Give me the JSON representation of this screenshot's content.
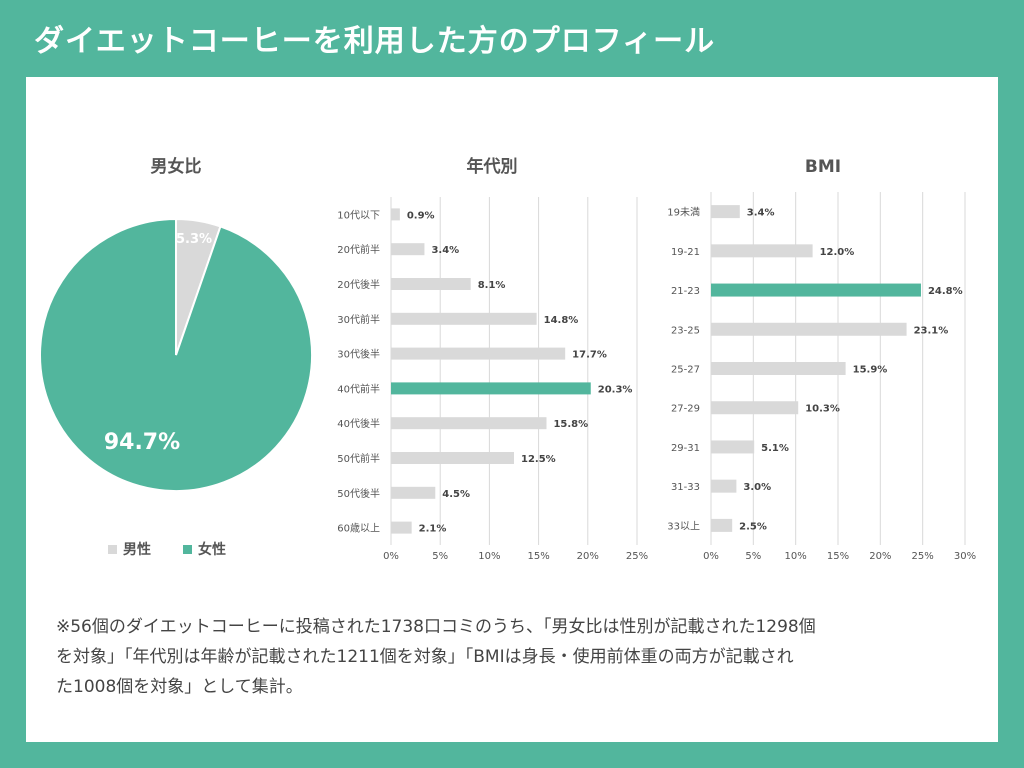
{
  "page_title": "ダイエットコーヒーを利用した方のプロフィール",
  "colors": {
    "background": "#52b69d",
    "accent": "#52b69d",
    "muted": "#d9d9d9",
    "panel": "#ffffff"
  },
  "chart_data": [
    {
      "type": "pie",
      "title": "男女比",
      "categories": [
        "男性",
        "女性"
      ],
      "values": [
        5.3,
        94.7
      ],
      "labels": [
        "5.3%",
        "94.7%"
      ],
      "colors": [
        "#d9d9d9",
        "#52b69d"
      ],
      "legend": "bottom"
    },
    {
      "type": "bar",
      "orientation": "horizontal",
      "title": "年代別",
      "categories": [
        "10代以下",
        "20代前半",
        "20代後半",
        "30代前半",
        "30代後半",
        "40代前半",
        "40代後半",
        "50代前半",
        "50代後半",
        "60歳以上"
      ],
      "values": [
        0.9,
        3.4,
        8.1,
        14.8,
        17.7,
        20.3,
        15.8,
        12.5,
        4.5,
        2.1
      ],
      "labels": [
        "0.9%",
        "3.4%",
        "8.1%",
        "14.8%",
        "17.7%",
        "20.3%",
        "15.8%",
        "12.5%",
        "4.5%",
        "2.1%"
      ],
      "highlight": "40代前半",
      "xlim": [
        0,
        25
      ],
      "ticks": [
        0,
        5,
        10,
        15,
        20,
        25
      ],
      "tick_labels": [
        "0%",
        "5%",
        "10%",
        "15%",
        "20%",
        "25%"
      ],
      "grid": true
    },
    {
      "type": "bar",
      "orientation": "horizontal",
      "title": "BMI",
      "categories": [
        "19未満",
        "19-21",
        "21-23",
        "23-25",
        "25-27",
        "27-29",
        "29-31",
        "31-33",
        "33以上"
      ],
      "values": [
        3.4,
        12.0,
        24.8,
        23.1,
        15.9,
        10.3,
        5.1,
        3.0,
        2.5
      ],
      "labels": [
        "3.4%",
        "12.0%",
        "24.8%",
        "23.1%",
        "15.9%",
        "10.3%",
        "5.1%",
        "3.0%",
        "2.5%"
      ],
      "highlight": "21-23",
      "xlim": [
        0,
        30
      ],
      "ticks": [
        0,
        5,
        10,
        15,
        20,
        25,
        30
      ],
      "tick_labels": [
        "0%",
        "5%",
        "10%",
        "15%",
        "20%",
        "25%",
        "30%"
      ],
      "grid": true
    }
  ],
  "footnote": {
    "lines": [
      "※56個のダイエットコーヒーに投稿された1738口コミのうち、「男女比は性別が記載された1298個",
      "を対象」「年代別は年齢が記載された1211個を対象」「BMIは身長・使用前体重の両方が記載され",
      "た1008個を対象」として集計。"
    ]
  }
}
